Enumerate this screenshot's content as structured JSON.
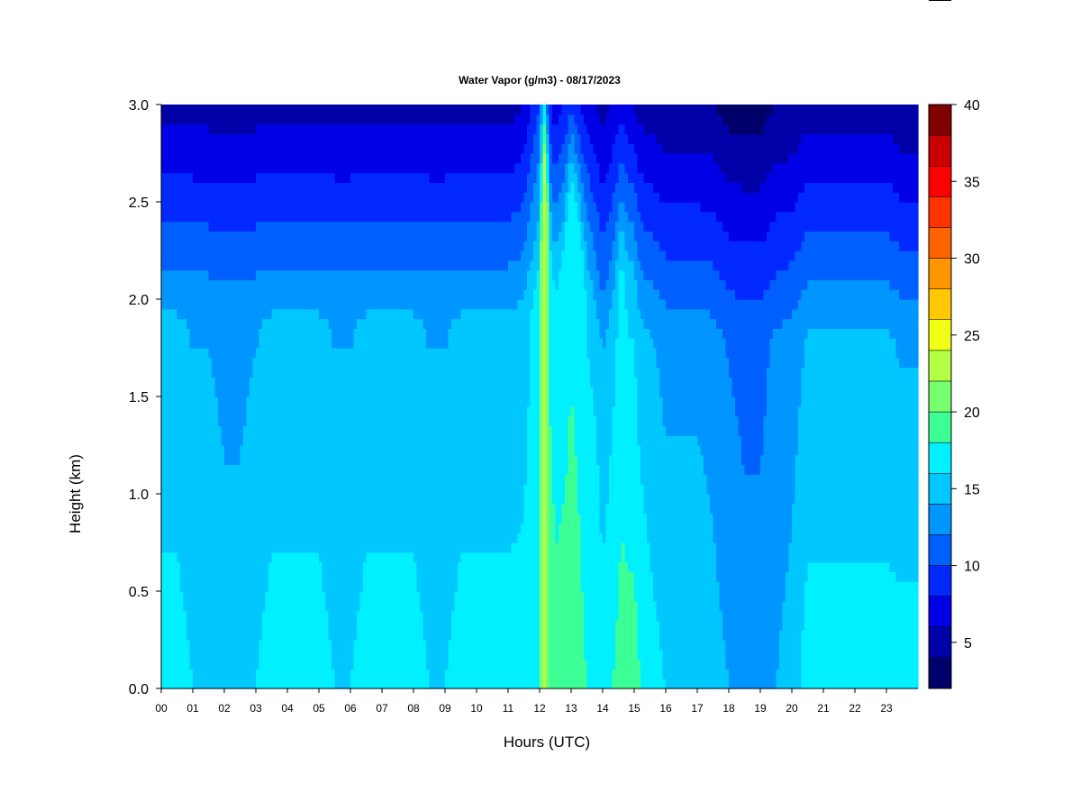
{
  "chart_data": {
    "type": "heatmap",
    "title": "Water Vapor (g/m3) - 08/17/2023",
    "xlabel": "Hours (UTC)",
    "ylabel": "Height (km)",
    "xlim": [
      0,
      24
    ],
    "ylim": [
      0,
      3.0
    ],
    "x_ticks": [
      0,
      1,
      2,
      3,
      4,
      5,
      6,
      7,
      8,
      9,
      10,
      11,
      12,
      13,
      14,
      15,
      16,
      17,
      18,
      19,
      20,
      21,
      22,
      23
    ],
    "x_tick_labels": [
      "00",
      "01",
      "02",
      "03",
      "04",
      "05",
      "06",
      "07",
      "08",
      "09",
      "10",
      "11",
      "12",
      "13",
      "14",
      "15",
      "16",
      "17",
      "18",
      "19",
      "20",
      "21",
      "22",
      "23"
    ],
    "y_ticks": [
      0.0,
      0.5,
      1.0,
      1.5,
      2.0,
      2.5,
      3.0
    ],
    "y_tick_labels": [
      "0.0",
      "0.5",
      "1.0",
      "1.5",
      "2.0",
      "2.5",
      "3.0"
    ],
    "colorbar": {
      "min": 2,
      "max": 40,
      "ticks": [
        5,
        10,
        15,
        20,
        25,
        30,
        35,
        40
      ],
      "colors": [
        "#00006a",
        "#0000a8",
        "#0000e6",
        "#0028ff",
        "#0060ff",
        "#0096ff",
        "#00c8ff",
        "#00f0ff",
        "#3cff96",
        "#78ff6e",
        "#b4ff46",
        "#f0ff14",
        "#ffc800",
        "#ff9600",
        "#ff6400",
        "#ff3200",
        "#ff0000",
        "#c80000",
        "#800000"
      ]
    },
    "time_series": {
      "times": [
        0.0,
        0.5,
        1.0,
        1.5,
        2.0,
        2.5,
        3.0,
        3.5,
        4.0,
        4.5,
        5.0,
        5.5,
        6.0,
        6.5,
        7.0,
        7.5,
        8.0,
        8.5,
        9.0,
        9.5,
        10.0,
        10.5,
        11.0,
        11.5,
        12.0,
        12.1,
        12.2,
        12.3,
        12.5,
        12.8,
        13.0,
        13.2,
        13.5,
        13.8,
        14.0,
        14.3,
        14.6,
        14.8,
        15.0,
        15.2,
        15.5,
        16.0,
        16.5,
        17.0,
        17.5,
        18.0,
        18.5,
        19.0,
        19.5,
        20.0,
        20.5,
        21.0,
        21.5,
        22.0,
        22.5,
        23.0,
        23.5,
        23.9
      ],
      "surface_values": [
        17,
        17,
        16,
        16,
        15,
        15,
        16,
        17,
        17,
        17,
        17,
        16,
        16,
        17,
        17,
        17,
        17,
        16,
        16,
        17,
        17,
        17,
        17,
        17,
        18,
        22,
        24,
        20,
        19,
        19,
        19,
        19,
        18,
        18,
        17,
        18,
        19,
        19,
        19,
        18,
        17,
        16,
        16,
        16,
        15,
        14,
        13,
        13,
        14,
        15,
        17,
        17,
        17,
        17,
        17,
        17,
        17,
        17
      ],
      "top_values": [
        5,
        5,
        5,
        5,
        5,
        5,
        5,
        5,
        5,
        5,
        5,
        5,
        5,
        5,
        5,
        5,
        5,
        5,
        5,
        5,
        5,
        5,
        5,
        6,
        10,
        16,
        15,
        8,
        7,
        8,
        9,
        8,
        7,
        6,
        5,
        6,
        7,
        6,
        6,
        5,
        5,
        4,
        4,
        4,
        4,
        3,
        3,
        3,
        4,
        4,
        5,
        5,
        5,
        5,
        5,
        5,
        4,
        4
      ],
      "moist_layer_km": [
        1.9,
        1.9,
        1.9,
        1.9,
        1.9,
        1.9,
        1.9,
        1.9,
        1.9,
        1.9,
        1.9,
        1.9,
        1.9,
        1.9,
        1.9,
        1.9,
        1.9,
        1.9,
        1.9,
        1.9,
        1.9,
        1.9,
        1.9,
        1.9,
        2.0,
        2.6,
        2.8,
        2.2,
        2.0,
        2.2,
        2.6,
        2.4,
        2.0,
        1.8,
        1.7,
        1.8,
        2.2,
        2.0,
        2.0,
        1.8,
        1.8,
        1.8,
        1.8,
        1.8,
        1.8,
        1.8,
        1.8,
        1.8,
        1.8,
        1.8,
        1.8,
        1.8,
        1.8,
        1.8,
        1.8,
        1.8,
        1.8,
        1.8
      ]
    }
  }
}
